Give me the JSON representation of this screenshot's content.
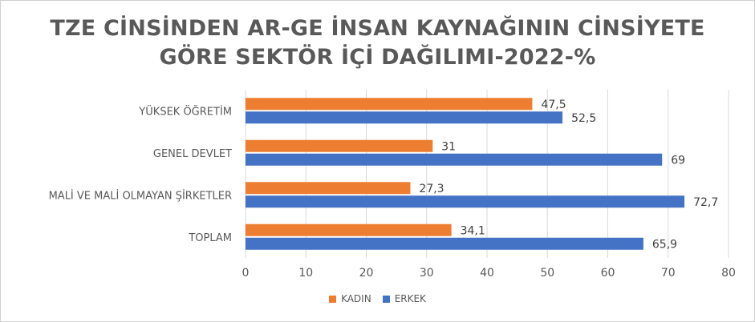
{
  "chart_data": {
    "type": "bar",
    "orientation": "horizontal",
    "title_lines": [
      "TZE CİNSİNDEN AR-GE İNSAN KAYNAĞININ CİNSİYETE",
      "GÖRE SEKTÖR İÇİ DAĞILIMI-2022-%"
    ],
    "categories": [
      "YÜKSEK ÖĞRETİM",
      "GENEL DEVLET",
      "MALİ VE MALİ OLMAYAN ŞİRKETLER",
      "TOPLAM"
    ],
    "series": [
      {
        "name": "KADIN",
        "color": "#ED7D31",
        "values": [
          47.5,
          31,
          27.3,
          34.1
        ],
        "labels": [
          "47,5",
          "31",
          "27,3",
          "34,1"
        ]
      },
      {
        "name": "ERKEK",
        "color": "#4472C4",
        "values": [
          52.5,
          69,
          72.7,
          65.9
        ],
        "labels": [
          "52,5",
          "69",
          "72,7",
          "65,9"
        ]
      }
    ],
    "xlim": [
      0,
      80
    ],
    "xticks": [
      "0",
      "10",
      "20",
      "30",
      "40",
      "50",
      "60",
      "70",
      "80"
    ],
    "grid": true,
    "legend_position": "bottom"
  }
}
